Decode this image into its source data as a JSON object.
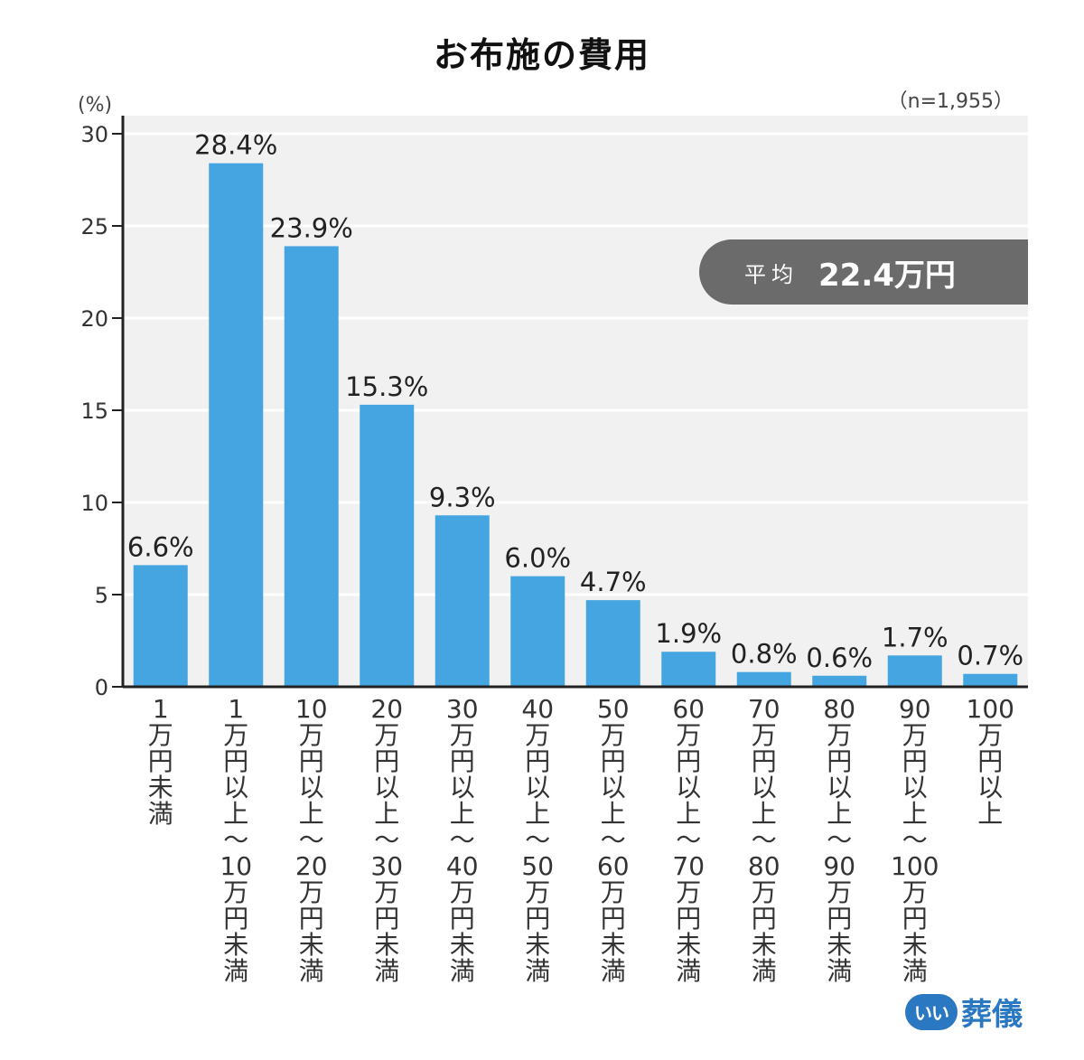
{
  "chart_data": {
    "type": "bar",
    "title": "お布施の費用",
    "sample_size": "（n=1,955）",
    "ylabel": "(%)",
    "ylim": [
      0,
      30
    ],
    "yticks": [
      0,
      5,
      10,
      15,
      20,
      25,
      30
    ],
    "grid": true,
    "bar_color": "#45a5e0",
    "categories": [
      "1万円未満",
      "1万円以上〜10万円未満",
      "10万円以上〜20万円未満",
      "20万円以上〜30万円未満",
      "30万円以上〜40万円未満",
      "40万円以上〜50万円未満",
      "50万円以上〜60万円未満",
      "60万円以上〜70万円未満",
      "70万円以上〜80万円未満",
      "80万円以上〜90万円未満",
      "90万円以上〜100万円未満",
      "100万円以上"
    ],
    "values": [
      6.6,
      28.4,
      23.9,
      15.3,
      9.3,
      6.0,
      4.7,
      1.9,
      0.8,
      0.6,
      1.7,
      0.7
    ],
    "value_labels": [
      "6.6%",
      "28.4%",
      "23.9%",
      "15.3%",
      "9.3%",
      "6.0%",
      "4.7%",
      "1.9%",
      "0.8%",
      "0.6%",
      "1.7%",
      "0.7%"
    ],
    "annotation": {
      "label": "平均",
      "value": "22.4万円"
    }
  },
  "logo": {
    "mark": "いい",
    "text": "葬儀",
    "color": "#2a78c2"
  }
}
